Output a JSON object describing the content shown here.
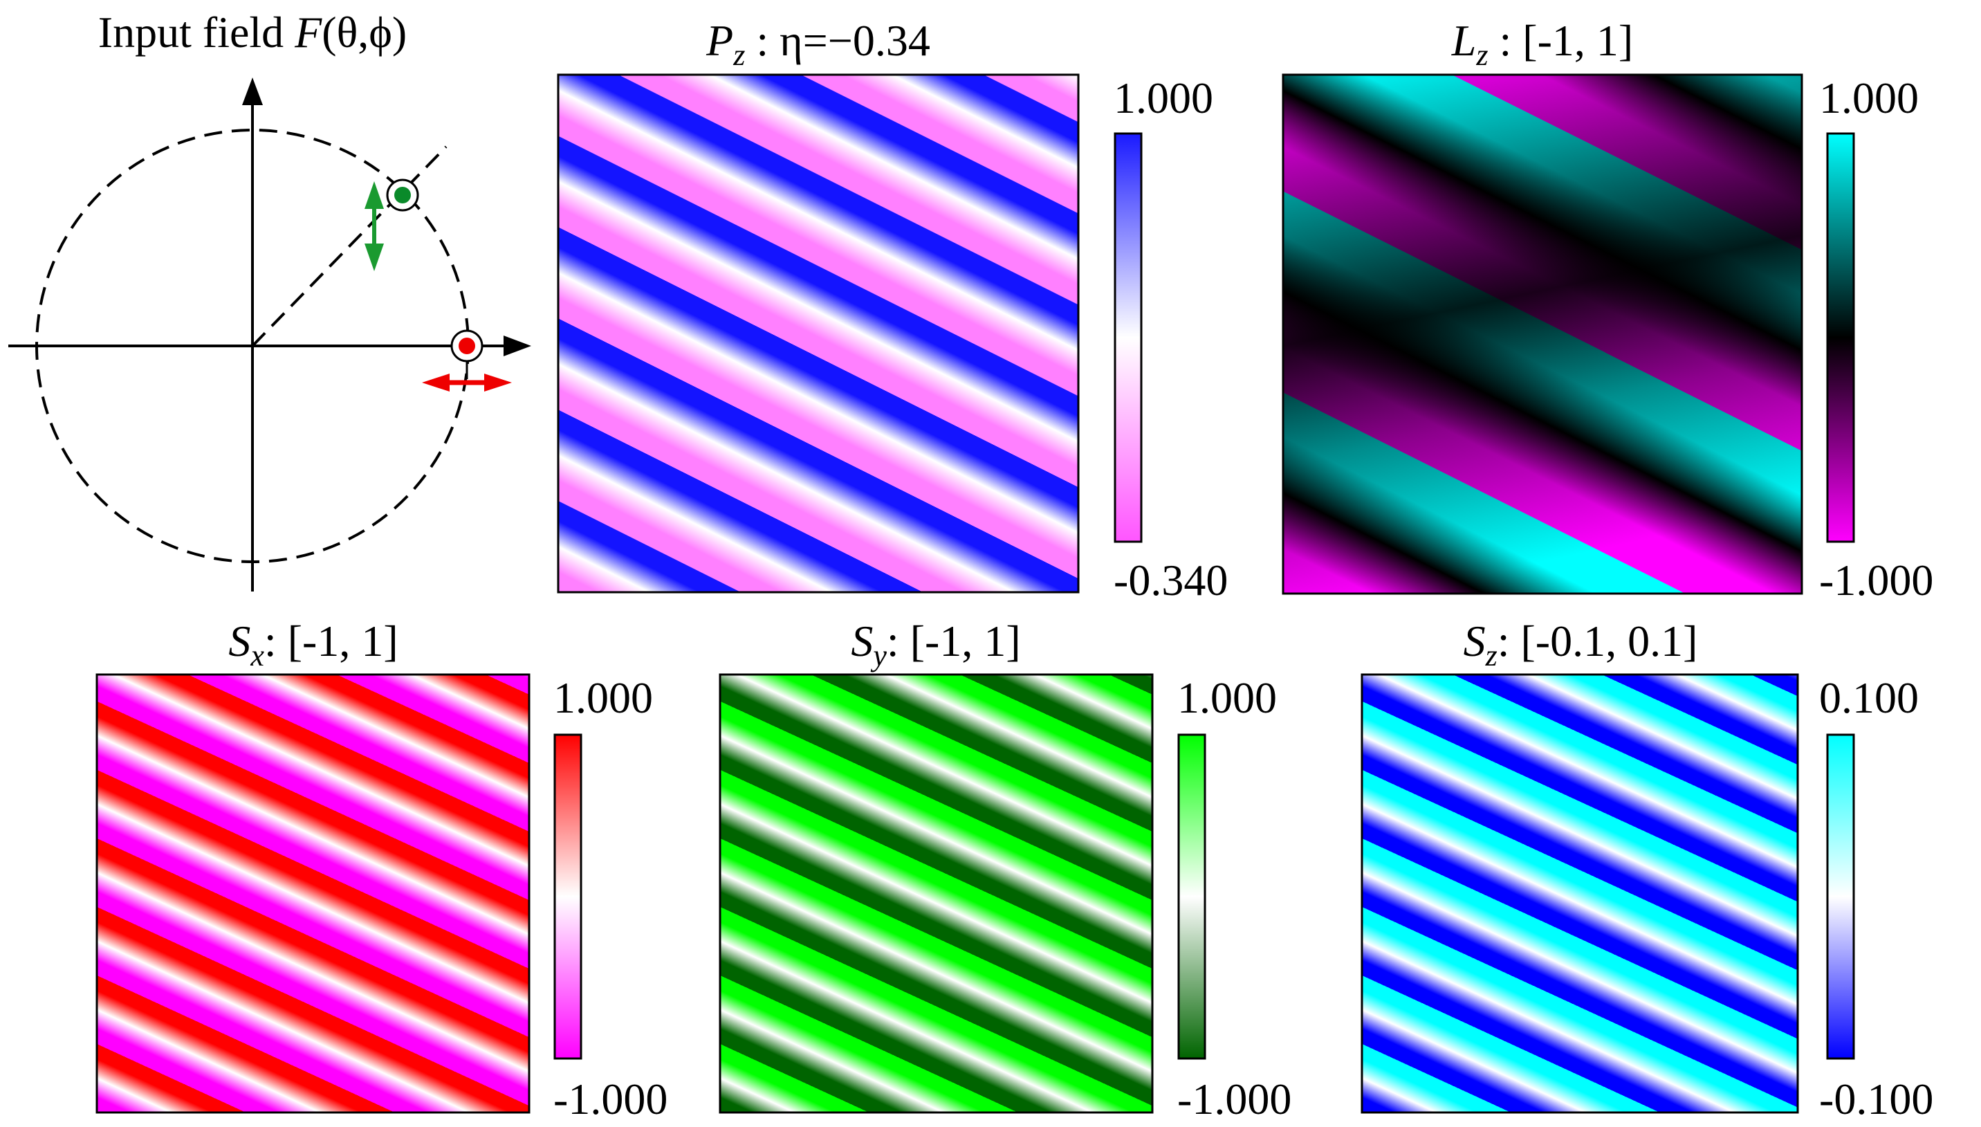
{
  "input_panel": {
    "title_prefix": "Input field ",
    "title_func": "F",
    "title_args": "(θ,ϕ)"
  },
  "panels": [
    {
      "id": "pz",
      "title_sym": "P",
      "title_sub": "z",
      "title_rest": " : η=−0.34",
      "cbar_max": "1.000",
      "cbar_min": "-0.340",
      "stops": [
        "#ff80ff",
        "#ffffff",
        "#1414ff"
      ],
      "cbar_stops": [
        "#ff55ff",
        "#ffffff",
        "#1a1aff"
      ]
    },
    {
      "id": "lz",
      "title_sym": "L",
      "title_sub": "z",
      "title_rest": " :  [-1, 1]",
      "cbar_max": "1.000",
      "cbar_min": "-1.000",
      "stops": [
        "#ff00ff",
        "#000000",
        "#00ffff"
      ],
      "cbar_stops": [
        "#ff00ff",
        "#000000",
        "#00ffff"
      ]
    },
    {
      "id": "sx",
      "title_sym": "S",
      "title_sub": "x",
      "title_rest": ": [-1, 1]",
      "cbar_max": "1.000",
      "cbar_min": "-1.000",
      "stops": [
        "#ff00ff",
        "#ffffff",
        "#ff0000"
      ],
      "cbar_stops": [
        "#ff00ff",
        "#ffffff",
        "#ff0000"
      ]
    },
    {
      "id": "sy",
      "title_sym": "S",
      "title_sub": "y",
      "title_rest": ": [-1, 1]",
      "cbar_max": "1.000",
      "cbar_min": "-1.000",
      "stops": [
        "#006400",
        "#ffffff",
        "#00ff00"
      ],
      "cbar_stops": [
        "#006400",
        "#ffffff",
        "#00ff00"
      ]
    },
    {
      "id": "sz",
      "title_sym": "S",
      "title_sub": "z",
      "title_rest": ": [-0.1, 0.1]",
      "cbar_max": "0.100",
      "cbar_min": "-0.100",
      "stops": [
        "#0000ff",
        "#ffffff",
        "#00ffff"
      ],
      "cbar_stops": [
        "#0000ff",
        "#ffffff",
        "#00ffff"
      ]
    }
  ]
}
